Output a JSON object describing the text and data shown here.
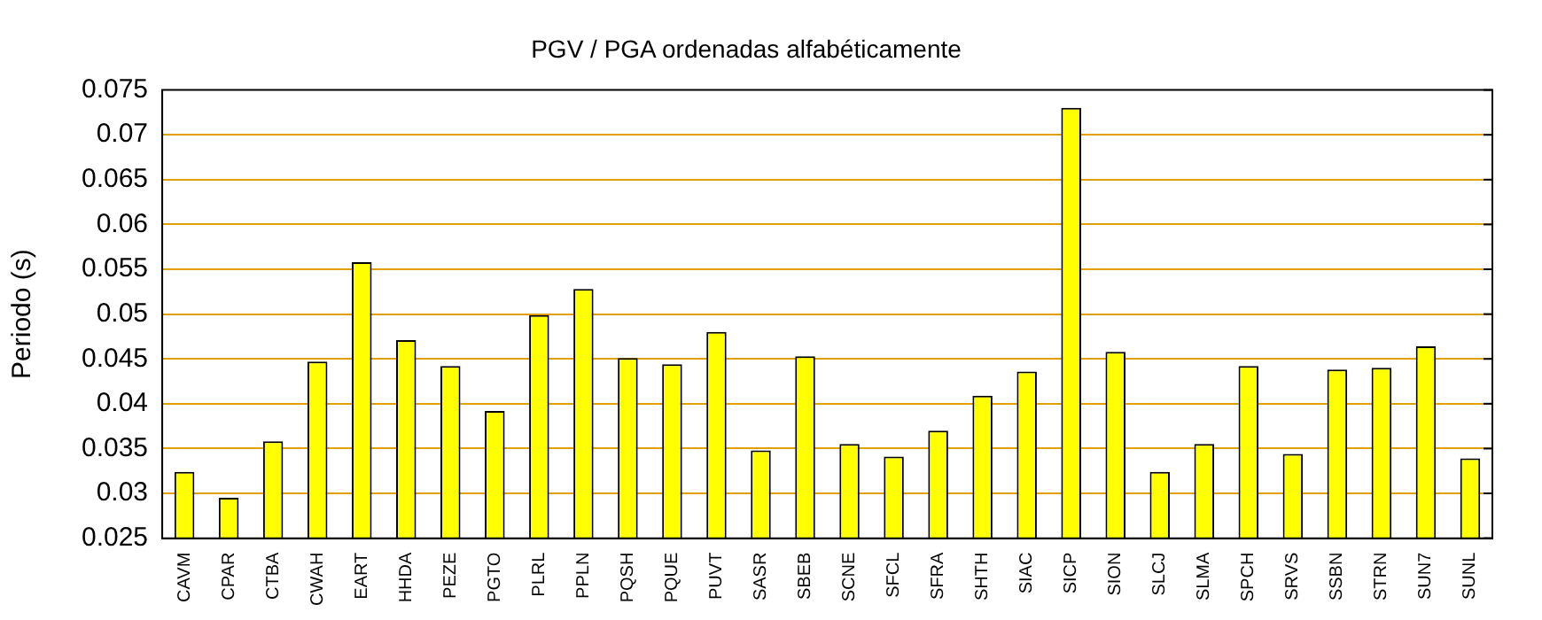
{
  "chart_data": {
    "type": "bar",
    "title": "PGV / PGA ordenadas alfabéticamente",
    "ylabel": "Periodo (s)",
    "categories": [
      "CAVM",
      "CPAR",
      "CTBA",
      "CWAH",
      "EART",
      "HHDA",
      "PEZE",
      "PGTO",
      "PLRL",
      "PPLN",
      "PQSH",
      "PQUE",
      "PUVT",
      "SASR",
      "SBEB",
      "SCNE",
      "SFCL",
      "SFRA",
      "SHTH",
      "SIAC",
      "SICP",
      "SION",
      "SLCJ",
      "SLMA",
      "SPCH",
      "SRVS",
      "SSBN",
      "STRN",
      "SUN7",
      "SUNL"
    ],
    "values": [
      0.0324,
      0.0295,
      0.0358,
      0.0447,
      0.0558,
      0.0471,
      0.0442,
      0.0392,
      0.0499,
      0.0528,
      0.0451,
      0.0444,
      0.048,
      0.0348,
      0.0453,
      0.0355,
      0.0341,
      0.037,
      0.0409,
      0.0436,
      0.073,
      0.0458,
      0.0324,
      0.0355,
      0.0442,
      0.0344,
      0.0438,
      0.044,
      0.0464,
      0.0339
    ],
    "color": "#ffff00",
    "ylim": [
      0.025,
      0.075
    ],
    "yticks": [
      0.025,
      0.03,
      0.035,
      0.04,
      0.045,
      0.05,
      0.055,
      0.06,
      0.065,
      0.07,
      0.075
    ],
    "grid": "y",
    "legend": false
  }
}
